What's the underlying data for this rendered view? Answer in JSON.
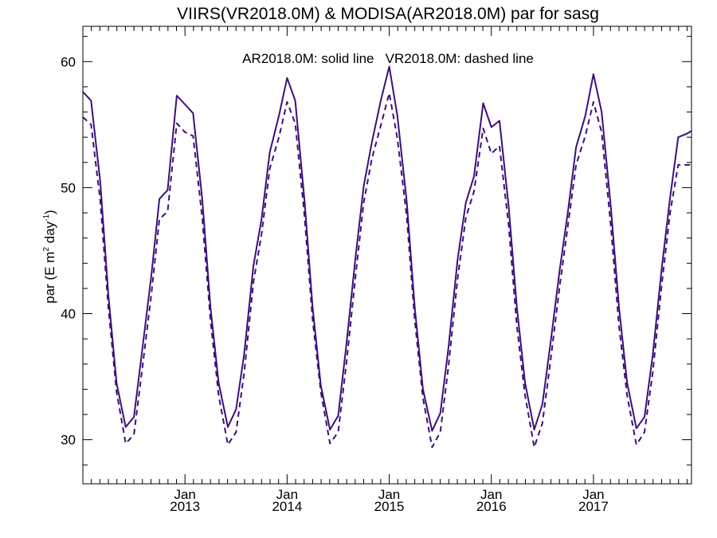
{
  "chart_data": {
    "type": "line",
    "title": "VIIRS(VR2018.0M) & MODISA(AR2018.0M)  par for sasg",
    "annotation": "AR2018.0M: solid line   VR2018.0M: dashed line",
    "ylabel": {
      "prefix": "par (E m",
      "sup1": "2",
      "middle": " day",
      "sup2": "-1",
      "suffix": ")"
    },
    "ylim": [
      26.5,
      62.8
    ],
    "yticks": [
      30,
      40,
      50,
      60
    ],
    "yticklabels": [
      "30",
      "40",
      "50",
      "60"
    ],
    "xlim": [
      2012.0,
      2017.96
    ],
    "xticks": [
      {
        "value": 2013.0,
        "month": "Jan",
        "year": "2013"
      },
      {
        "value": 2014.0,
        "month": "Jan",
        "year": "2014"
      },
      {
        "value": 2015.0,
        "month": "Jan",
        "year": "2015"
      },
      {
        "value": 2016.0,
        "month": "Jan",
        "year": "2016"
      },
      {
        "value": 2017.0,
        "month": "Jan",
        "year": "2017"
      }
    ],
    "grid": false,
    "line_color": "#3d0f7a",
    "series": [
      {
        "name": "AR2018.0M",
        "style": "solid",
        "x": [
          2012.0,
          2012.08,
          2012.17,
          2012.25,
          2012.33,
          2012.42,
          2012.5,
          2012.58,
          2012.67,
          2012.75,
          2012.83,
          2012.92,
          2013.0,
          2013.08,
          2013.17,
          2013.25,
          2013.33,
          2013.42,
          2013.5,
          2013.58,
          2013.67,
          2013.75,
          2013.83,
          2013.92,
          2014.0,
          2014.08,
          2014.17,
          2014.25,
          2014.33,
          2014.42,
          2014.5,
          2014.58,
          2014.67,
          2014.75,
          2014.83,
          2014.92,
          2015.0,
          2015.08,
          2015.17,
          2015.25,
          2015.33,
          2015.42,
          2015.5,
          2015.58,
          2015.67,
          2015.75,
          2015.83,
          2015.92,
          2016.0,
          2016.08,
          2016.17,
          2016.25,
          2016.33,
          2016.42,
          2016.5,
          2016.58,
          2016.67,
          2016.75,
          2016.83,
          2016.92,
          2017.0,
          2017.08,
          2017.17,
          2017.25,
          2017.33,
          2017.42,
          2017.5,
          2017.58,
          2017.67,
          2017.75,
          2017.83,
          2017.92,
          2017.96
        ],
        "y": [
          57.6,
          56.9,
          50.5,
          41.5,
          34.5,
          31.0,
          31.8,
          37.0,
          43.0,
          49.1,
          49.8,
          57.3,
          56.6,
          55.9,
          49.0,
          40.5,
          34.5,
          31.0,
          32.4,
          36.8,
          43.8,
          47.5,
          52.8,
          55.7,
          58.7,
          56.9,
          49.0,
          40.5,
          34.3,
          30.8,
          31.9,
          37.5,
          44.5,
          50.1,
          53.6,
          57.0,
          59.6,
          55.7,
          49.0,
          40.5,
          34.0,
          30.7,
          32.1,
          37.3,
          44.3,
          48.8,
          50.9,
          56.7,
          54.8,
          55.3,
          48.5,
          40.5,
          34.5,
          30.8,
          32.8,
          37.7,
          43.5,
          48.1,
          53.2,
          55.7,
          59.0,
          56.0,
          48.5,
          40.5,
          34.5,
          30.9,
          31.8,
          36.7,
          43.7,
          49.2,
          54.0,
          54.3,
          54.5
        ]
      },
      {
        "name": "VR2018.0M",
        "style": "dashed",
        "x": [
          2012.0,
          2012.08,
          2012.17,
          2012.25,
          2012.33,
          2012.42,
          2012.5,
          2012.58,
          2012.67,
          2012.75,
          2012.83,
          2012.92,
          2013.0,
          2013.08,
          2013.17,
          2013.25,
          2013.33,
          2013.42,
          2013.5,
          2013.58,
          2013.67,
          2013.75,
          2013.83,
          2013.92,
          2014.0,
          2014.08,
          2014.17,
          2014.25,
          2014.33,
          2014.42,
          2014.5,
          2014.58,
          2014.67,
          2014.75,
          2014.83,
          2014.92,
          2015.0,
          2015.08,
          2015.17,
          2015.25,
          2015.33,
          2015.42,
          2015.5,
          2015.58,
          2015.67,
          2015.75,
          2015.83,
          2015.92,
          2016.0,
          2016.08,
          2016.17,
          2016.25,
          2016.33,
          2016.42,
          2016.5,
          2016.58,
          2016.67,
          2016.75,
          2016.83,
          2016.92,
          2017.0,
          2017.08,
          2017.17,
          2017.25,
          2017.33,
          2017.42,
          2017.5,
          2017.58,
          2017.67,
          2017.75,
          2017.83,
          2017.92,
          2017.96
        ],
        "y": [
          55.6,
          55.0,
          49.0,
          40.5,
          33.8,
          29.7,
          30.4,
          35.5,
          41.5,
          47.5,
          48.1,
          55.1,
          54.4,
          54.1,
          47.5,
          39.5,
          33.5,
          29.6,
          30.6,
          35.3,
          42.5,
          46.3,
          51.5,
          54.0,
          56.8,
          55.1,
          47.8,
          39.5,
          33.8,
          29.7,
          30.6,
          36.0,
          43.0,
          48.8,
          52.3,
          55.0,
          57.5,
          53.9,
          47.8,
          39.5,
          33.3,
          29.4,
          30.6,
          35.8,
          42.8,
          47.6,
          49.7,
          54.7,
          52.7,
          53.3,
          47.0,
          39.0,
          33.5,
          29.4,
          31.3,
          36.3,
          42.2,
          47.0,
          51.8,
          54.1,
          56.8,
          54.4,
          47.0,
          39.0,
          33.5,
          29.6,
          30.6,
          35.3,
          42.4,
          48.0,
          51.8,
          51.8,
          51.8
        ]
      }
    ]
  }
}
